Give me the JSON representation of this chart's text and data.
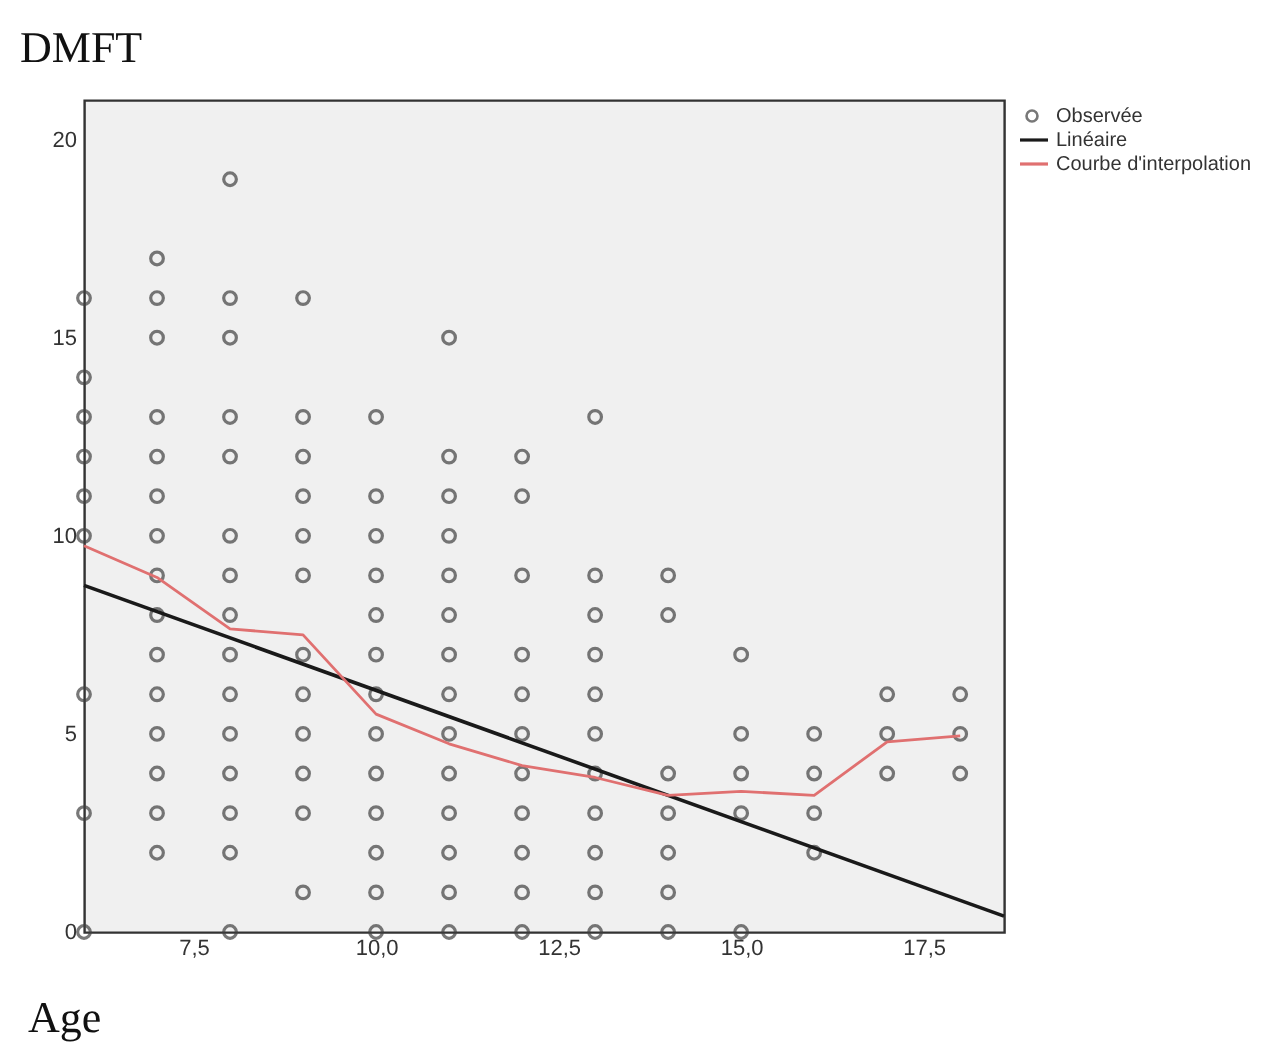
{
  "chart_data": {
    "type": "scatter",
    "xlabel": "Age",
    "ylabel": "DMFT",
    "xlim": [
      6,
      18.6
    ],
    "ylim": [
      0,
      21
    ],
    "xticks": [
      {
        "value": 7.5,
        "label": "7,5"
      },
      {
        "value": 10,
        "label": "10,0"
      },
      {
        "value": 12.5,
        "label": "12,5"
      },
      {
        "value": 15,
        "label": "15,0"
      },
      {
        "value": 17.5,
        "label": "17,5"
      }
    ],
    "yticks": [
      0,
      5,
      10,
      15,
      20
    ],
    "grid": false,
    "legend": "top right",
    "series": [
      {
        "name": "Observée",
        "marker": "circle",
        "color": "#404040",
        "x": [
          6,
          6,
          6,
          6,
          6,
          6,
          6,
          6,
          6,
          7,
          7,
          7,
          7,
          7,
          7,
          7,
          7,
          7,
          7,
          7,
          7,
          7,
          7,
          7,
          8,
          8,
          8,
          8,
          8,
          8,
          8,
          8,
          8,
          8,
          8,
          8,
          8,
          8,
          8,
          9,
          9,
          9,
          9,
          9,
          9,
          9,
          9,
          9,
          9,
          9,
          9,
          10,
          10,
          10,
          10,
          10,
          10,
          10,
          10,
          10,
          10,
          10,
          10,
          10,
          11,
          11,
          11,
          11,
          11,
          11,
          11,
          11,
          11,
          11,
          11,
          11,
          11,
          11,
          12,
          12,
          12,
          12,
          12,
          12,
          12,
          12,
          12,
          12,
          12,
          13,
          13,
          13,
          13,
          13,
          13,
          13,
          13,
          13,
          13,
          13,
          14,
          14,
          14,
          14,
          14,
          14,
          14,
          15,
          15,
          15,
          15,
          15,
          16,
          16,
          16,
          16,
          17,
          17,
          17,
          18,
          18,
          18
        ],
        "values": [
          16,
          14,
          13,
          12,
          11,
          10,
          6,
          3,
          0,
          17,
          16,
          15,
          13,
          12,
          11,
          10,
          9,
          8,
          7,
          6,
          5,
          4,
          3,
          2,
          19,
          16,
          15,
          13,
          12,
          10,
          9,
          8,
          7,
          6,
          5,
          4,
          3,
          2,
          0,
          16,
          13,
          12,
          11,
          10,
          9,
          7,
          6,
          5,
          4,
          3,
          1,
          13,
          11,
          10,
          9,
          8,
          7,
          6,
          5,
          4,
          3,
          2,
          1,
          0,
          15,
          12,
          11,
          10,
          9,
          8,
          7,
          6,
          5,
          4,
          3,
          2,
          1,
          0,
          12,
          11,
          9,
          7,
          6,
          5,
          4,
          3,
          2,
          1,
          0,
          13,
          9,
          8,
          7,
          6,
          5,
          4,
          3,
          2,
          1,
          0,
          9,
          8,
          4,
          3,
          2,
          1,
          0,
          7,
          5,
          4,
          3,
          0,
          5,
          4,
          3,
          2,
          6,
          5,
          4,
          6,
          5,
          4
        ]
      },
      {
        "name": "Linéaire",
        "type": "line",
        "line_style": "solid",
        "color": "#1a1a1a",
        "x": [
          6,
          18.6
        ],
        "values": [
          8.75,
          0.4
        ]
      },
      {
        "name": "Courbe d'interpolation",
        "type": "line",
        "line_style": "solid",
        "color": "#e07070",
        "x": [
          6,
          7,
          8,
          9,
          10,
          11,
          12,
          13,
          14,
          15,
          16,
          17,
          18
        ],
        "values": [
          9.75,
          8.95,
          7.65,
          7.5,
          5.5,
          4.75,
          4.2,
          3.9,
          3.45,
          3.55,
          3.45,
          4.8,
          4.95
        ]
      }
    ]
  }
}
